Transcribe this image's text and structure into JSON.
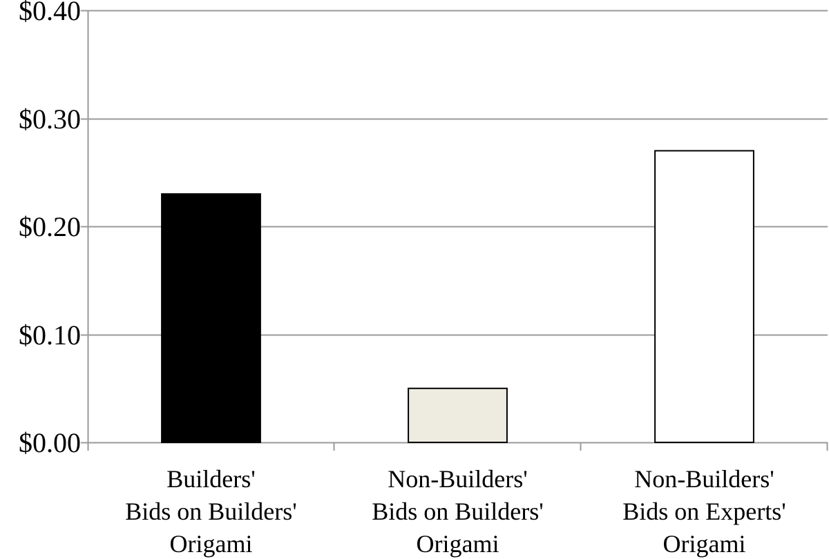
{
  "chart_data": {
    "type": "bar",
    "title": "",
    "xlabel": "",
    "ylabel": "",
    "categories": [
      [
        "Builders'",
        "Bids on Builders'",
        "Origami"
      ],
      [
        "Non-Builders'",
        "Bids on Builders'",
        "Origami"
      ],
      [
        "Non-Builders'",
        "Bids on Experts'",
        "Origami"
      ]
    ],
    "values": [
      0.23,
      0.05,
      0.27
    ],
    "bar_colors": [
      "#000000",
      "#eeebe1",
      "#ffffff"
    ],
    "ylim": [
      0,
      0.4
    ],
    "yticks": [
      0.0,
      0.1,
      0.2,
      0.3,
      0.4
    ],
    "ytick_labels": [
      "$0.00",
      "$0.10",
      "$0.20",
      "$0.30",
      "$0.40"
    ],
    "grid": true,
    "legend": "none"
  }
}
